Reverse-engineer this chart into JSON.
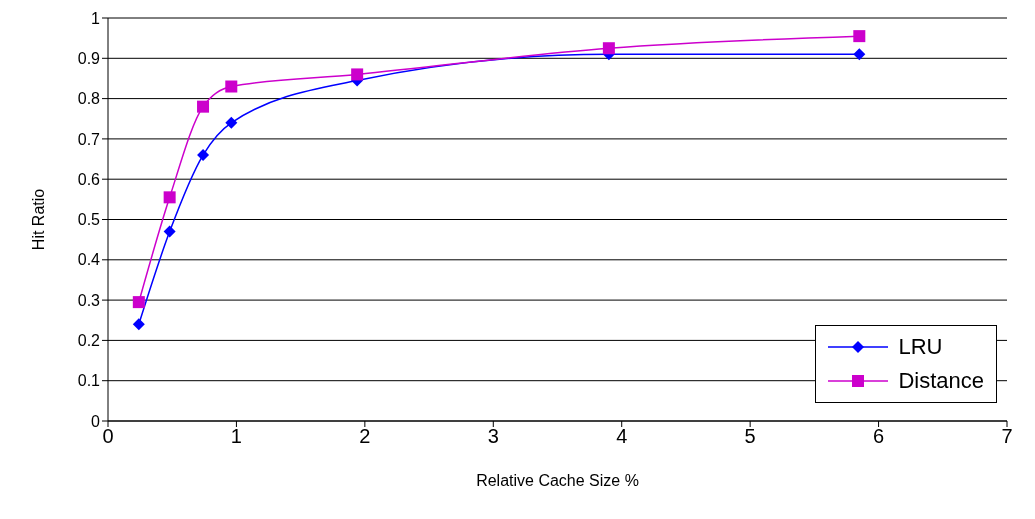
{
  "chart_data": {
    "type": "line",
    "xlabel": "Relative Cache Size %",
    "ylabel": "Hit Ratio",
    "xlim": [
      0,
      7
    ],
    "xticks": [
      0,
      1,
      2,
      3,
      4,
      5,
      6,
      7
    ],
    "ylim": [
      0,
      1
    ],
    "yticks": [
      0,
      0.1,
      0.2,
      0.3,
      0.4,
      0.5,
      0.6,
      0.7,
      0.8,
      0.9,
      1
    ],
    "grid": "y",
    "legend": "bottom right",
    "series": [
      {
        "name": "LRU",
        "color": "#0000ff",
        "marker": "diamond",
        "x": [
          0.24,
          0.48,
          0.74,
          0.96,
          1.94,
          3.9,
          5.85
        ],
        "values": [
          0.24,
          0.47,
          0.66,
          0.74,
          0.845,
          0.91,
          0.91
        ]
      },
      {
        "name": "Distance",
        "color": "#cc00cc",
        "marker": "square",
        "x": [
          0.24,
          0.48,
          0.74,
          0.96,
          1.94,
          3.9,
          5.85
        ],
        "values": [
          0.295,
          0.555,
          0.78,
          0.83,
          0.86,
          0.925,
          0.955
        ]
      }
    ]
  }
}
